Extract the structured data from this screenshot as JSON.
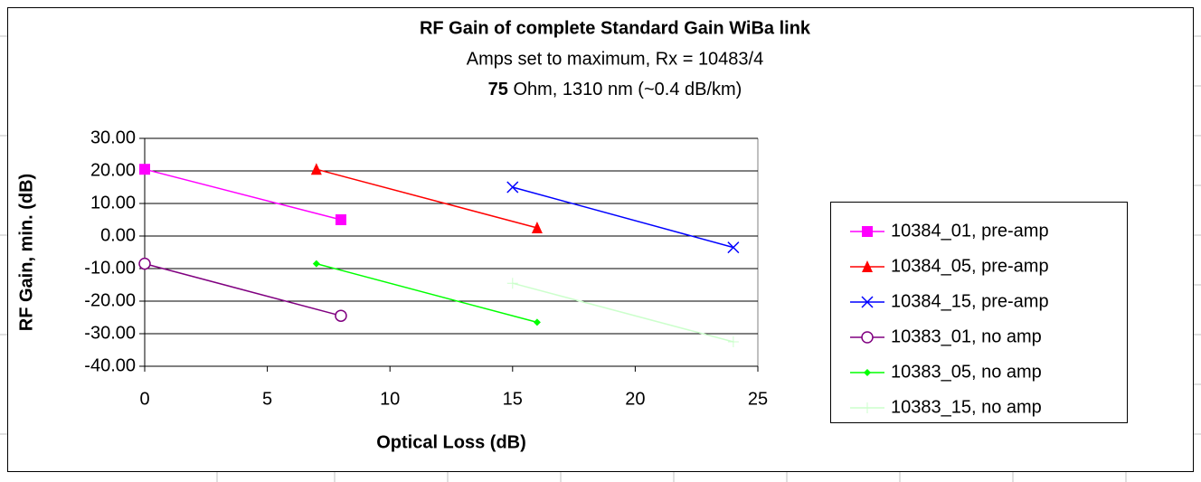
{
  "chart_data": {
    "type": "line",
    "title": "RF Gain of complete Standard Gain WiBa link",
    "subtitle": "Amps set to maximum, Rx = 10483/4",
    "subtitle2_bold": "75",
    "subtitle2": " Ohm, 1310 nm (~0.4 dB/km)",
    "x_label": "Optical Loss (dB)",
    "y_label": "RF Gain, min. (dB)",
    "xlim": [
      0,
      25
    ],
    "xticks": [
      0,
      5,
      10,
      15,
      20,
      25
    ],
    "ylim": [
      -40,
      30
    ],
    "yticks": [
      {
        "value": -40,
        "label": "-40.00"
      },
      {
        "value": -30,
        "label": "-30.00"
      },
      {
        "value": -20,
        "label": "-20.00"
      },
      {
        "value": -10,
        "label": "-10.00"
      },
      {
        "value": 0,
        "label": "0.00"
      },
      {
        "value": 10,
        "label": "10.00"
      },
      {
        "value": 20,
        "label": "20.00"
      },
      {
        "value": 30,
        "label": "30.00"
      }
    ],
    "grid": true,
    "legend": "right",
    "series": [
      {
        "name": "10384_01, pre-amp",
        "color": "#ff00ff",
        "marker": "square",
        "x": [
          0,
          8
        ],
        "values": [
          20.5,
          5
        ]
      },
      {
        "name": "10384_05, pre-amp",
        "color": "#ff0000",
        "marker": "triangle",
        "x": [
          7,
          16
        ],
        "values": [
          20.5,
          2.5
        ]
      },
      {
        "name": "10384_15, pre-amp",
        "color": "#0000ff",
        "marker": "cross",
        "x": [
          15,
          24
        ],
        "values": [
          15,
          -3.5
        ]
      },
      {
        "name": "10383_01, no amp",
        "color": "#800080",
        "marker": "circle",
        "x": [
          0,
          8
        ],
        "values": [
          -8.5,
          -24.5
        ]
      },
      {
        "name": "10383_05, no amp",
        "color": "#00ff00",
        "marker": "diamond",
        "x": [
          7,
          16
        ],
        "values": [
          -8.5,
          -26.5
        ]
      },
      {
        "name": "10383_15, no amp",
        "color": "#ccffcc",
        "marker": "plus",
        "x": [
          15,
          24
        ],
        "values": [
          -14.5,
          -32.5
        ]
      }
    ]
  }
}
